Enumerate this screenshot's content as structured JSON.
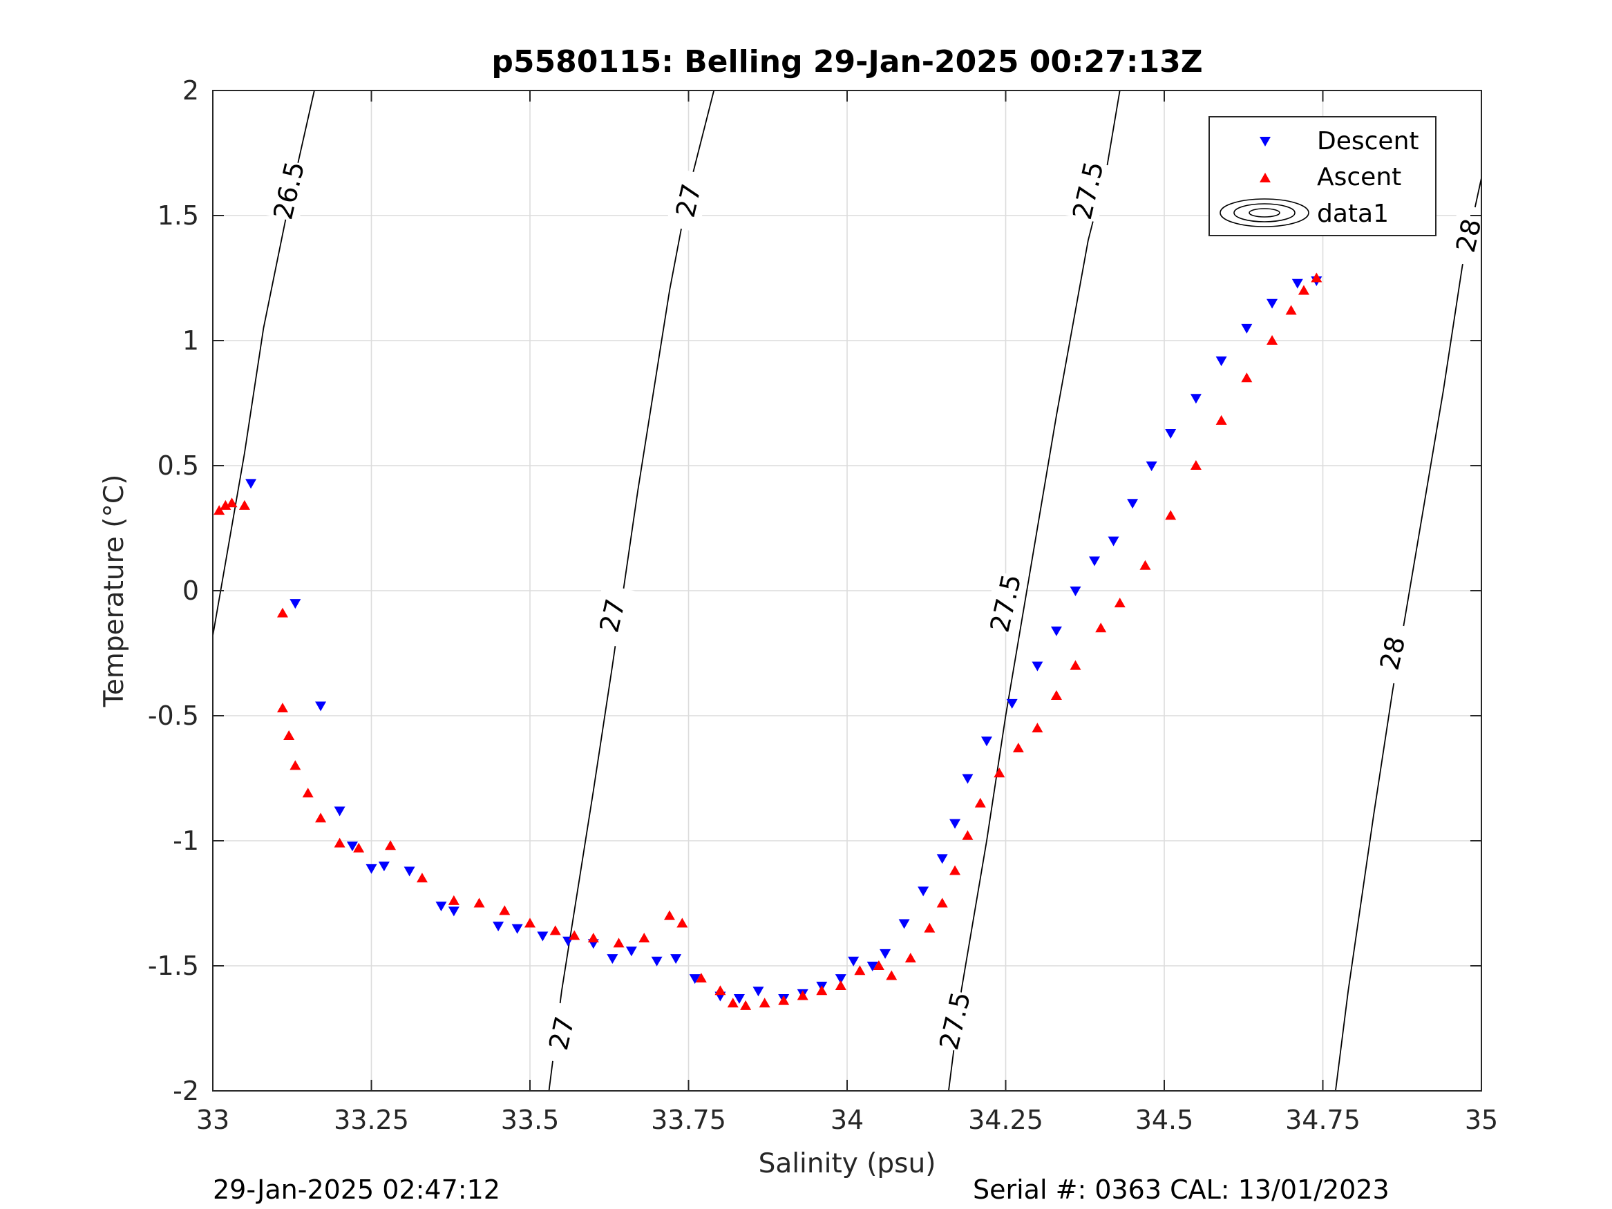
{
  "footer": {
    "left": "29-Jan-2025 02:47:12",
    "right": "Serial #: 0363  CAL: 13/01/2023"
  },
  "chart_data": {
    "type": "scatter",
    "title": "p5580115: Belling 29-Jan-2025 00:27:13Z",
    "xlabel": "Salinity (psu)",
    "ylabel": "Temperature (°C)",
    "xlim": [
      33,
      35
    ],
    "ylim": [
      -2,
      2
    ],
    "xticks": [
      33,
      33.25,
      33.5,
      33.75,
      34,
      34.25,
      34.5,
      34.75,
      35
    ],
    "xtick_labels": [
      "33",
      "33.25",
      "33.5",
      "33.75",
      "34",
      "34.25",
      "34.5",
      "34.75",
      "35"
    ],
    "yticks": [
      -2,
      -1.5,
      -1,
      -0.5,
      0,
      0.5,
      1,
      1.5,
      2
    ],
    "ytick_labels": [
      "-2",
      "-1.5",
      "-1",
      "-0.5",
      "0",
      "0.5",
      "1",
      "1.5",
      "2"
    ],
    "grid": true,
    "legend": {
      "position": "top-right",
      "entries": [
        {
          "label": "Descent",
          "marker": "triangle-down",
          "color": "#0000ff"
        },
        {
          "label": "Ascent",
          "marker": "triangle-up",
          "color": "#ff0000"
        },
        {
          "label": "data1",
          "marker": "contour",
          "color": "#000000"
        }
      ]
    },
    "contours": [
      {
        "label": "26.5",
        "points": [
          [
            33.0,
            -0.18
          ],
          [
            33.05,
            0.55
          ],
          [
            33.08,
            1.05
          ],
          [
            33.12,
            1.55
          ],
          [
            33.16,
            2.0
          ]
        ]
      },
      {
        "label": "27",
        "points": [
          [
            33.53,
            -2.0
          ],
          [
            33.55,
            -1.6
          ],
          [
            33.6,
            -0.8
          ],
          [
            33.63,
            -0.3
          ],
          [
            33.67,
            0.4
          ],
          [
            33.72,
            1.2
          ],
          [
            33.75,
            1.6
          ],
          [
            33.79,
            2.0
          ]
        ]
      },
      {
        "label": "27.5",
        "points": [
          [
            34.16,
            -2.0
          ],
          [
            34.18,
            -1.6
          ],
          [
            34.22,
            -1.0
          ],
          [
            34.25,
            -0.5
          ],
          [
            34.29,
            0.1
          ],
          [
            34.33,
            0.7
          ],
          [
            34.38,
            1.4
          ],
          [
            34.41,
            1.7
          ],
          [
            34.43,
            2.0
          ]
        ]
      },
      {
        "label": "28",
        "points": [
          [
            34.77,
            -2.0
          ],
          [
            34.79,
            -1.6
          ],
          [
            34.83,
            -0.9
          ],
          [
            34.86,
            -0.4
          ],
          [
            34.9,
            0.2
          ],
          [
            34.94,
            0.8
          ],
          [
            34.97,
            1.3
          ],
          [
            35.0,
            1.65
          ]
        ]
      }
    ],
    "contour_labels": [
      {
        "text": "26.5",
        "x": 33.12,
        "y": 1.6
      },
      {
        "text": "27",
        "x": 33.75,
        "y": 1.56
      },
      {
        "text": "27",
        "x": 33.63,
        "y": -0.1
      },
      {
        "text": "27",
        "x": 33.55,
        "y": -1.77
      },
      {
        "text": "27.5",
        "x": 34.38,
        "y": 1.6
      },
      {
        "text": "27.5",
        "x": 34.25,
        "y": -0.05
      },
      {
        "text": "27.5",
        "x": 34.17,
        "y": -1.72
      },
      {
        "text": "28",
        "x": 34.98,
        "y": 1.42
      },
      {
        "text": "28",
        "x": 34.86,
        "y": -0.25
      }
    ],
    "series": [
      {
        "name": "Descent",
        "marker": "triangle-down",
        "color": "#0000ff",
        "x": [
          33.06,
          33.13,
          33.17,
          33.2,
          33.22,
          33.25,
          33.27,
          33.31,
          33.36,
          33.38,
          33.45,
          33.48,
          33.52,
          33.56,
          33.6,
          33.63,
          33.66,
          33.7,
          33.73,
          33.76,
          33.8,
          33.83,
          33.86,
          33.9,
          33.93,
          33.96,
          33.99,
          34.01,
          34.04,
          34.06,
          34.09,
          34.12,
          34.15,
          34.17,
          34.19,
          34.22,
          34.26,
          34.3,
          34.33,
          34.36,
          34.39,
          34.42,
          34.45,
          34.48,
          34.51,
          34.55,
          34.59,
          34.63,
          34.67,
          34.71,
          34.74
        ],
        "y": [
          0.43,
          -0.05,
          -0.46,
          -0.88,
          -1.02,
          -1.11,
          -1.1,
          -1.12,
          -1.26,
          -1.28,
          -1.34,
          -1.35,
          -1.38,
          -1.4,
          -1.41,
          -1.47,
          -1.44,
          -1.48,
          -1.47,
          -1.55,
          -1.62,
          -1.63,
          -1.6,
          -1.63,
          -1.61,
          -1.58,
          -1.55,
          -1.48,
          -1.5,
          -1.45,
          -1.33,
          -1.2,
          -1.07,
          -0.93,
          -0.75,
          -0.6,
          -0.45,
          -0.3,
          -0.16,
          0.0,
          0.12,
          0.2,
          0.35,
          0.5,
          0.63,
          0.77,
          0.92,
          1.05,
          1.15,
          1.23,
          1.24
        ]
      },
      {
        "name": "Ascent",
        "marker": "triangle-up",
        "color": "#ff0000",
        "x": [
          33.01,
          33.02,
          33.03,
          33.05,
          33.11,
          33.11,
          33.12,
          33.13,
          33.15,
          33.17,
          33.2,
          33.23,
          33.28,
          33.33,
          33.38,
          33.42,
          33.46,
          33.5,
          33.54,
          33.57,
          33.6,
          33.64,
          33.68,
          33.72,
          33.74,
          33.77,
          33.8,
          33.82,
          33.84,
          33.87,
          33.9,
          33.93,
          33.96,
          33.99,
          34.02,
          34.05,
          34.07,
          34.1,
          34.13,
          34.15,
          34.17,
          34.19,
          34.21,
          34.24,
          34.27,
          34.3,
          34.33,
          34.36,
          34.4,
          34.43,
          34.47,
          34.51,
          34.55,
          34.59,
          34.63,
          34.67,
          34.7,
          34.72,
          34.74
        ],
        "y": [
          0.32,
          0.34,
          0.35,
          0.34,
          -0.09,
          -0.47,
          -0.58,
          -0.7,
          -0.81,
          -0.91,
          -1.01,
          -1.03,
          -1.02,
          -1.15,
          -1.24,
          -1.25,
          -1.28,
          -1.33,
          -1.36,
          -1.38,
          -1.39,
          -1.41,
          -1.39,
          -1.3,
          -1.33,
          -1.55,
          -1.6,
          -1.65,
          -1.66,
          -1.65,
          -1.64,
          -1.62,
          -1.6,
          -1.58,
          -1.52,
          -1.5,
          -1.54,
          -1.47,
          -1.35,
          -1.25,
          -1.12,
          -0.98,
          -0.85,
          -0.73,
          -0.63,
          -0.55,
          -0.42,
          -0.3,
          -0.15,
          -0.05,
          0.1,
          0.3,
          0.5,
          0.68,
          0.85,
          1.0,
          1.12,
          1.2,
          1.25
        ]
      }
    ]
  }
}
